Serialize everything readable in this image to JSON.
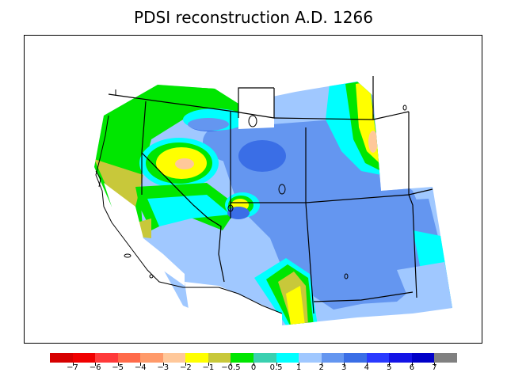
{
  "title": "PDSI reconstruction A.D. 1266",
  "legend": {
    "colors": [
      "#d60000",
      "#f00000",
      "#ff3a3a",
      "#ff6a4a",
      "#ff9a6a",
      "#ffc89a",
      "#ffff00",
      "#c8c83a",
      "#00e600",
      "#3ad0b0",
      "#00ffff",
      "#a0c8ff",
      "#6496f0",
      "#3a6ee6",
      "#2a3aff",
      "#1414e6",
      "#0000c8",
      "#808080"
    ],
    "labels": [
      "−7",
      "−6",
      "−5",
      "−4",
      "−3",
      "−2",
      "−1",
      "−0.5",
      "0",
      "0.5",
      "1",
      "2",
      "3",
      "4",
      "5",
      "6",
      "7"
    ]
  },
  "map": {
    "region": "western-united-states",
    "icons": [
      "state-borders",
      "coastline",
      "lakes"
    ]
  }
}
